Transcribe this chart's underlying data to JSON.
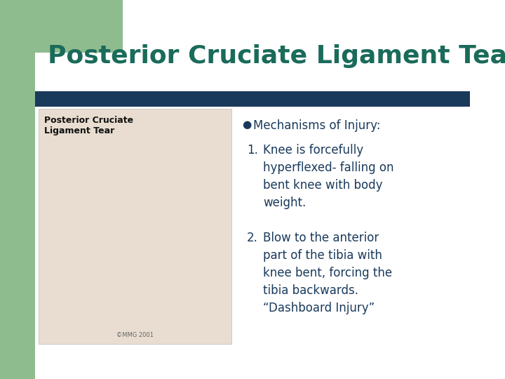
{
  "title": "Posterior Cruciate Ligament Tear",
  "title_color": "#1a6b5a",
  "title_fontsize": 26,
  "background_color": "#ffffff",
  "divider_color": "#1a3a5c",
  "bullet_symbol": "●",
  "bullet_text": "Mechanisms of Injury:",
  "item1_num": "1.",
  "item1_text": "Knee is forcefully\nhyperflexed- falling on\nbent knee with body\nweight.",
  "item2_num": "2.",
  "item2_text": "Blow to the anterior\npart of the tibia with\nknee bent, forcing the\ntibia backwards.\n“Dashboard Injury”",
  "text_color": "#1a3a5c",
  "body_fontsize": 12,
  "left_accent_color": "#8fbc8f",
  "image_label": "Posterior Cruciate\nLigament Tear",
  "copyright": "©MMG 2001"
}
